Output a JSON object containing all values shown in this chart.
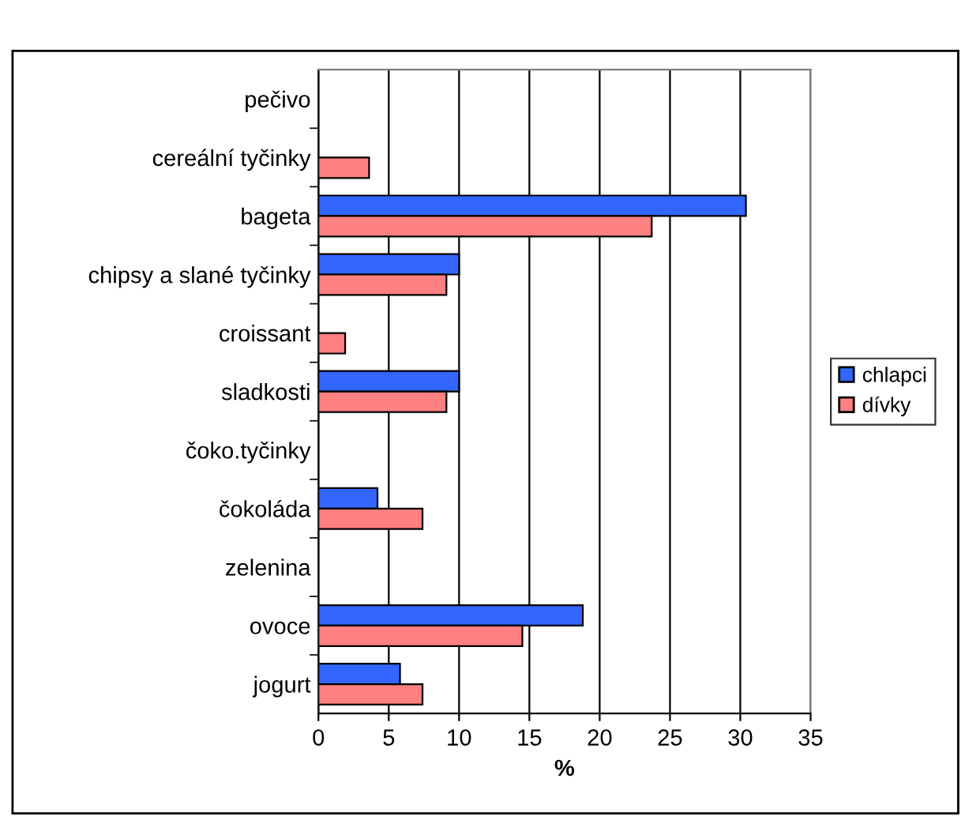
{
  "chart_data": {
    "type": "bar",
    "orientation": "horizontal",
    "xlabel": "%",
    "categories": [
      "pečivo",
      "cereální tyčinky",
      "bageta",
      "chipsy a slané tyčinky",
      "croissant",
      "sladkosti",
      "čoko.tyčinky",
      "čokoláda",
      "zelenina",
      "ovoce",
      "jogurt"
    ],
    "series": [
      {
        "name": "chlapci",
        "color": "#3366ff",
        "values": [
          null,
          null,
          30.4,
          10.0,
          null,
          10.0,
          null,
          4.2,
          null,
          18.8,
          5.8
        ]
      },
      {
        "name": "dívky",
        "color": "#ff8080",
        "values": [
          null,
          3.6,
          23.7,
          9.1,
          1.9,
          9.1,
          null,
          7.4,
          null,
          14.5,
          7.4
        ]
      }
    ],
    "xlim": [
      0,
      35
    ],
    "xticks": [
      0,
      5,
      10,
      15,
      20,
      25,
      30,
      35
    ],
    "grid": "x",
    "legend": "right"
  }
}
